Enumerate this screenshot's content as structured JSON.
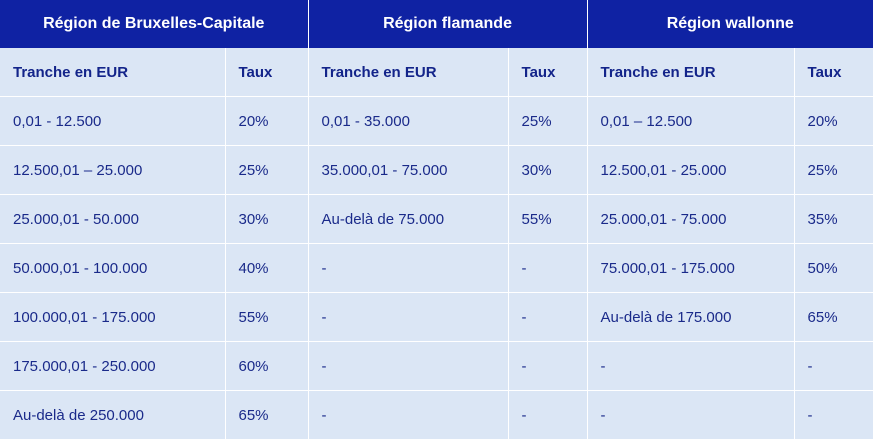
{
  "regions": [
    {
      "name": "Région de Bruxelles-Capitale",
      "col_bracket": "Tranche en EUR",
      "col_rate": "Taux"
    },
    {
      "name": "Région flamande",
      "col_bracket": "Tranche en EUR",
      "col_rate": "Taux"
    },
    {
      "name": "Région wallonne",
      "col_bracket": "Tranche en EUR",
      "col_rate": "Taux"
    }
  ],
  "rows": [
    {
      "bxl": {
        "bracket": "0,01 - 12.500",
        "rate": "20%"
      },
      "vla": {
        "bracket": "0,01 - 35.000",
        "rate": "25%"
      },
      "wal": {
        "bracket": "0,01 – 12.500",
        "rate": "20%"
      }
    },
    {
      "bxl": {
        "bracket": "12.500,01 – 25.000",
        "rate": "25%"
      },
      "vla": {
        "bracket": "35.000,01 - 75.000",
        "rate": "30%"
      },
      "wal": {
        "bracket": "12.500,01 - 25.000",
        "rate": "25%"
      }
    },
    {
      "bxl": {
        "bracket": "25.000,01 - 50.000",
        "rate": "30%"
      },
      "vla": {
        "bracket": "Au-delà de 75.000",
        "rate": "55%"
      },
      "wal": {
        "bracket": "25.000,01 - 75.000",
        "rate": "35%"
      }
    },
    {
      "bxl": {
        "bracket": "50.000,01 - 100.000",
        "rate": "40%"
      },
      "vla": {
        "bracket": "-",
        "rate": "-"
      },
      "wal": {
        "bracket": "75.000,01 - 175.000",
        "rate": "50%"
      }
    },
    {
      "bxl": {
        "bracket": "100.000,01 - 175.000",
        "rate": "55%"
      },
      "vla": {
        "bracket": "-",
        "rate": "-"
      },
      "wal": {
        "bracket": "Au-delà de 175.000",
        "rate": "65%"
      }
    },
    {
      "bxl": {
        "bracket": "175.000,01 - 250.000",
        "rate": "60%"
      },
      "vla": {
        "bracket": "-",
        "rate": "-"
      },
      "wal": {
        "bracket": "-",
        "rate": "-"
      }
    },
    {
      "bxl": {
        "bracket": "Au-delà de 250.000",
        "rate": "65%"
      },
      "vla": {
        "bracket": "-",
        "rate": "-"
      },
      "wal": {
        "bracket": "-",
        "rate": "-"
      }
    }
  ]
}
